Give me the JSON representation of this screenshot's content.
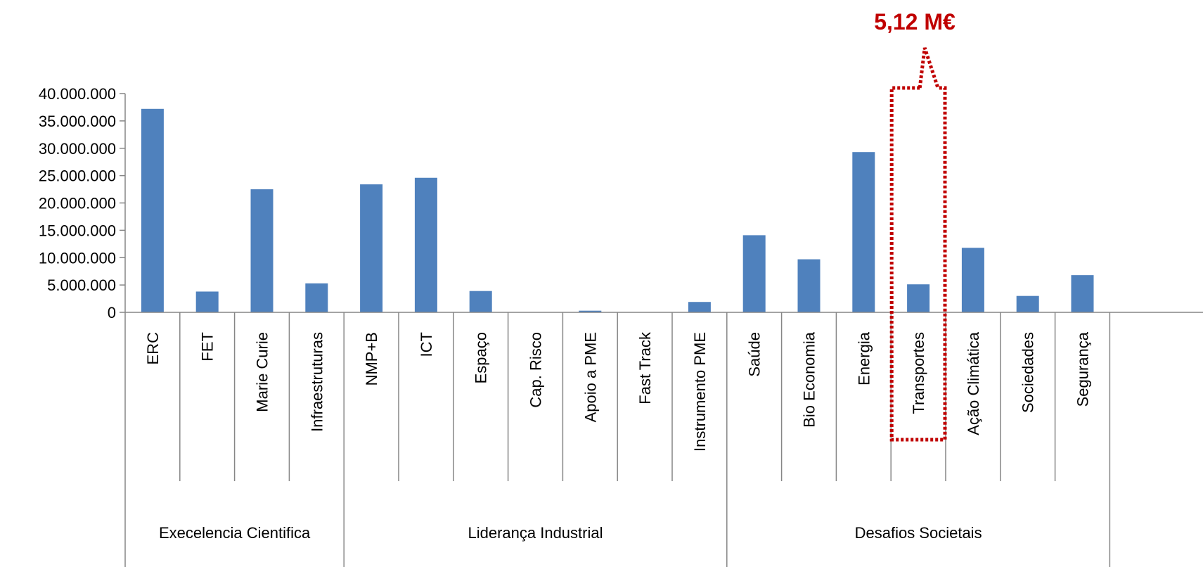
{
  "colors": {
    "bar": "#4f81bd",
    "highlight": "#c00000",
    "axis": "#868686"
  },
  "chart_data": {
    "type": "bar",
    "ylim": [
      0,
      40000000
    ],
    "yticks": [
      0,
      5000000,
      10000000,
      15000000,
      20000000,
      25000000,
      30000000,
      35000000,
      40000000
    ],
    "ytick_labels": [
      "0",
      "5.000.000",
      "10.000.000",
      "15.000.000",
      "20.000.000",
      "25.000.000",
      "30.000.000",
      "35.000.000",
      "40.000.000"
    ],
    "grid": false,
    "legend": "none",
    "categories": [
      "ERC",
      "FET",
      "Marie Curie",
      "Infraestruturas",
      "NMP+B",
      "ICT",
      "Espaço",
      "Cap. Risco",
      "Apoio a PME",
      "Fast Track",
      "Instrumento PME",
      "Saúde",
      "Bio Economia",
      "Energia",
      "Transportes",
      "Ação Climática",
      "Sociedades",
      "Segurança"
    ],
    "values": [
      37200000,
      3800000,
      22500000,
      5300000,
      23400000,
      24600000,
      3900000,
      0,
      300000,
      0,
      1900000,
      14100000,
      9700000,
      29300000,
      5120000,
      11800000,
      3000000,
      6800000
    ],
    "groups": [
      {
        "label": "Execelencia Cientifica",
        "count": 4
      },
      {
        "label": "Liderança Industrial",
        "count": 7
      },
      {
        "label": "Desafios Societais",
        "count": 7
      }
    ],
    "annotation": {
      "category": "Transportes",
      "text": "5,12 M€"
    }
  }
}
